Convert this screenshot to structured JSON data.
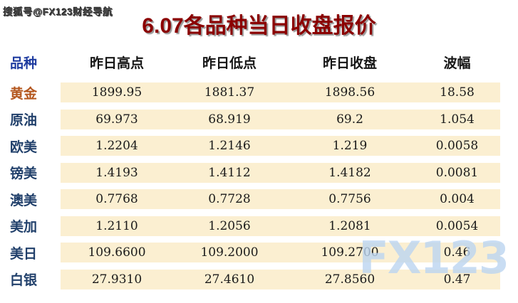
{
  "watermarks": {
    "top_left": "搜狐号@FX123财经导航",
    "bottom_right": "FX123"
  },
  "chart_data": {
    "type": "table",
    "title": "6.07各品种当日收盘报价",
    "columns": [
      "品种",
      "昨日高点",
      "昨日低点",
      "昨日收盘",
      "波幅"
    ],
    "rows": [
      [
        "黄金",
        "1899.95",
        "1881.37",
        "1898.56",
        "18.58"
      ],
      [
        "原油",
        "69.973",
        "68.919",
        "69.2",
        "1.054"
      ],
      [
        "欧美",
        "1.2204",
        "1.2146",
        "1.219",
        "0.0058"
      ],
      [
        "镑美",
        "1.4193",
        "1.4112",
        "1.4182",
        "0.0081"
      ],
      [
        "澳美",
        "0.7768",
        "0.7728",
        "0.7756",
        "0.004"
      ],
      [
        "美加",
        "1.2110",
        "1.2056",
        "1.2081",
        "0.0054"
      ],
      [
        "美日",
        "109.6600",
        "109.2000",
        "109.2700",
        "0.46"
      ],
      [
        "白银",
        "27.9310",
        "27.4610",
        "27.8560",
        "0.47"
      ]
    ]
  },
  "colors": {
    "title": "#8B0000",
    "header_first": "#1F3CA0",
    "header_rest": "#151515",
    "row_label": "#21406B",
    "gold_label": "#B4571E",
    "cell_bg": "#FBEFD1",
    "watermark_blue": "#BCD4F0"
  }
}
